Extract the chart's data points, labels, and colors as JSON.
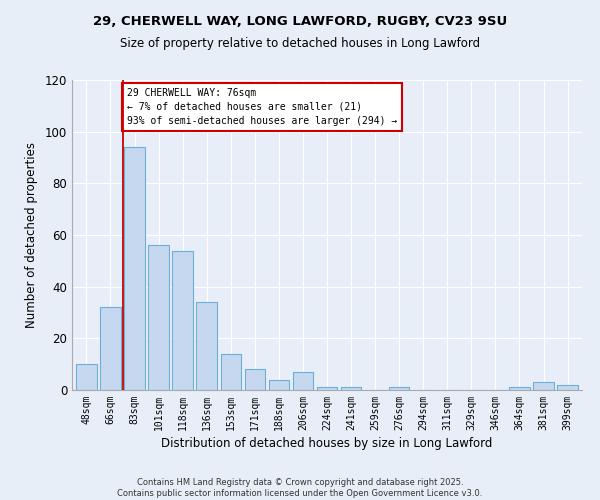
{
  "title1": "29, CHERWELL WAY, LONG LAWFORD, RUGBY, CV23 9SU",
  "title2": "Size of property relative to detached houses in Long Lawford",
  "xlabel": "Distribution of detached houses by size in Long Lawford",
  "ylabel": "Number of detached properties",
  "categories": [
    "48sqm",
    "66sqm",
    "83sqm",
    "101sqm",
    "118sqm",
    "136sqm",
    "153sqm",
    "171sqm",
    "188sqm",
    "206sqm",
    "224sqm",
    "241sqm",
    "259sqm",
    "276sqm",
    "294sqm",
    "311sqm",
    "329sqm",
    "346sqm",
    "364sqm",
    "381sqm",
    "399sqm"
  ],
  "values": [
    10,
    32,
    94,
    56,
    54,
    34,
    14,
    8,
    4,
    7,
    1,
    1,
    0,
    1,
    0,
    0,
    0,
    0,
    1,
    3,
    2
  ],
  "bar_color": "#c5d8f0",
  "bar_edge_color": "#6baed6",
  "vline_x_index": 2,
  "vline_color": "#cc0000",
  "annotation_text": "29 CHERWELL WAY: 76sqm\n← 7% of detached houses are smaller (21)\n93% of semi-detached houses are larger (294) →",
  "annotation_box_edgecolor": "#cc0000",
  "ylim": [
    0,
    120
  ],
  "yticks": [
    0,
    20,
    40,
    60,
    80,
    100,
    120
  ],
  "background_color": "#e8eef8",
  "plot_bg_color": "#e8eef8",
  "grid_color": "#ffffff",
  "footer1": "Contains HM Land Registry data © Crown copyright and database right 2025.",
  "footer2": "Contains public sector information licensed under the Open Government Licence v3.0."
}
